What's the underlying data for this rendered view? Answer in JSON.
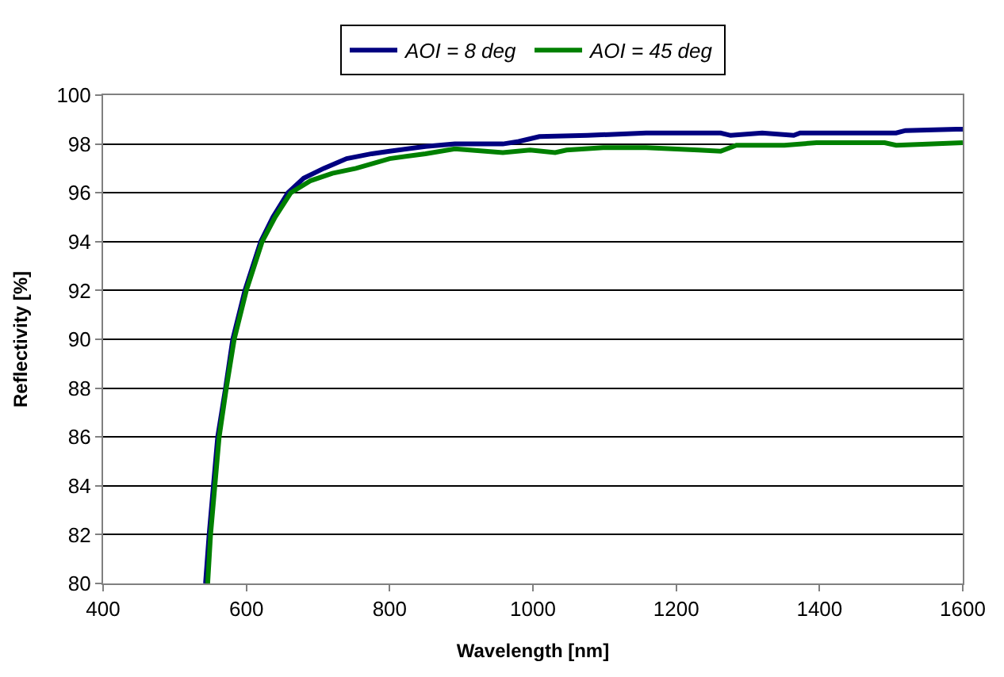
{
  "chart_data": {
    "type": "line",
    "xlabel": "Wavelength [nm]",
    "ylabel": "Reflectivity [%]",
    "xlim": [
      400,
      1600
    ],
    "xticks": [
      400,
      600,
      800,
      1000,
      1200,
      1400,
      1600
    ],
    "ylim": [
      80,
      100
    ],
    "yticks": [
      80,
      82,
      84,
      86,
      88,
      90,
      92,
      94,
      96,
      98,
      100
    ],
    "grid": "y",
    "legend": "top",
    "marker": "none",
    "line_style": "solid",
    "series": [
      {
        "name": "AOI = 8 deg",
        "color": "#000080",
        "x": [
          543,
          548,
          554,
          560,
          571,
          581,
          598,
          620,
          637,
          658,
          680,
          708,
          740,
          775,
          800,
          850,
          891,
          958,
          980,
          1009,
          1076,
          1158,
          1262,
          1276,
          1320,
          1364,
          1373,
          1507,
          1520,
          1591,
          1600
        ],
        "values": [
          80,
          82,
          84,
          86,
          88,
          90,
          92,
          94,
          95,
          96,
          96.6,
          97,
          97.4,
          97.6,
          97.7,
          97.9,
          98.0,
          98.0,
          98.1,
          98.3,
          98.35,
          98.45,
          98.45,
          98.35,
          98.45,
          98.35,
          98.45,
          98.45,
          98.55,
          98.6,
          98.6
        ]
      },
      {
        "name": "AOI = 45 deg",
        "color": "#008000",
        "x": [
          546,
          550,
          556,
          562,
          572,
          583,
          600,
          622,
          640,
          662,
          690,
          720,
          753,
          800,
          850,
          891,
          958,
          996,
          1031,
          1047,
          1098,
          1158,
          1231,
          1262,
          1284,
          1351,
          1396,
          1491,
          1507,
          1558,
          1600
        ],
        "values": [
          80,
          82,
          84,
          86,
          88,
          90,
          92,
          94,
          95,
          96,
          96.5,
          96.8,
          97,
          97.4,
          97.6,
          97.8,
          97.65,
          97.75,
          97.65,
          97.75,
          97.85,
          97.85,
          97.75,
          97.7,
          97.95,
          97.95,
          98.05,
          98.05,
          97.95,
          98.0,
          98.05
        ]
      }
    ]
  }
}
